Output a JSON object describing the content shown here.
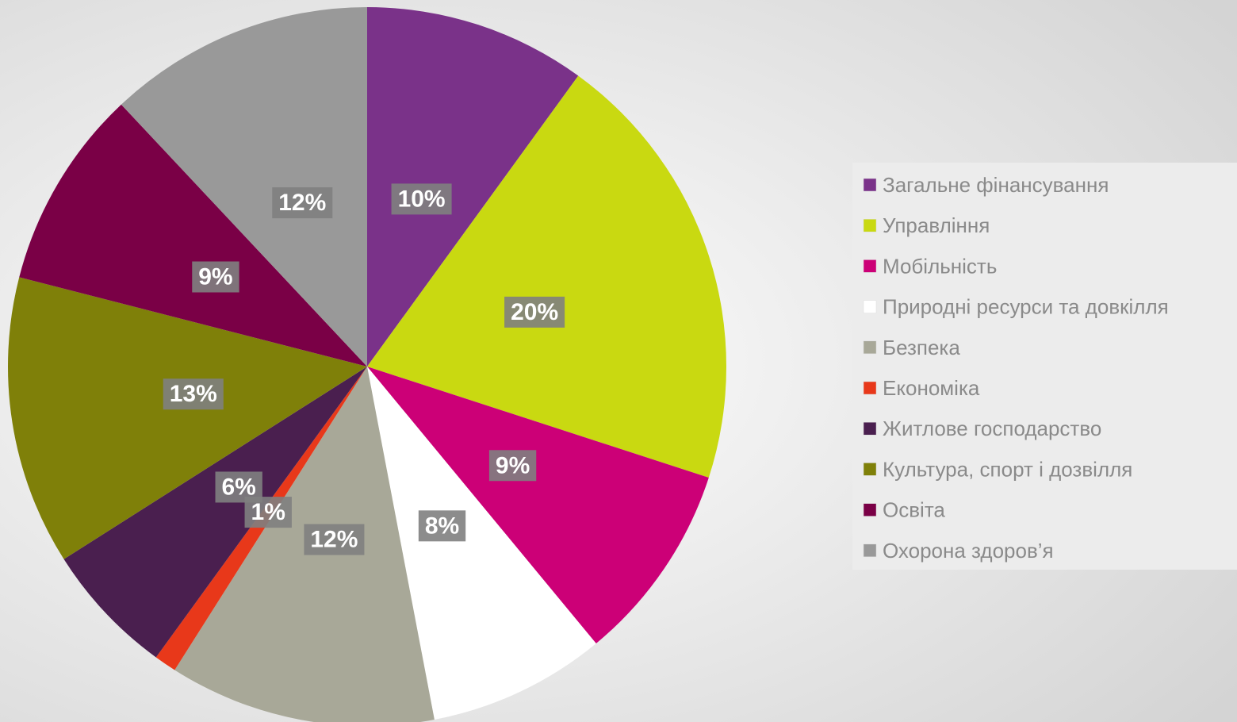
{
  "chart_data": {
    "type": "pie",
    "categories": [
      "Загальне фінансування",
      "Управління",
      "Мобільність",
      "Природні ресурси та довкілля",
      "Безпека",
      "Економіка",
      "Житлове господарство",
      "Культура, спорт і дозвілля",
      "Освіта",
      "Охорона здоров’я"
    ],
    "values": [
      10,
      20,
      9,
      8,
      12,
      1,
      6,
      13,
      9,
      12
    ],
    "value_labels": [
      "10%",
      "20%",
      "9%",
      "8%",
      "12%",
      "1%",
      "6%",
      "13%",
      "9%",
      "12%"
    ],
    "colors": [
      "#7a3289",
      "#c9d911",
      "#cc0077",
      "#ffffff",
      "#a8a898",
      "#e8381a",
      "#4a1f4f",
      "#7f8009",
      "#7a0046",
      "#999999"
    ],
    "legend": "right"
  }
}
